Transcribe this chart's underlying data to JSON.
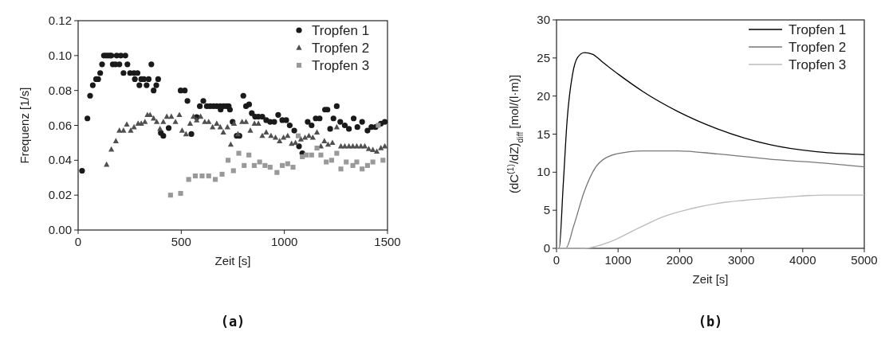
{
  "chart_data": [
    {
      "type": "scatter",
      "xlabel": "Zeit [s]",
      "ylabel": "Frequenz [1/s]",
      "xlim": [
        0,
        1500
      ],
      "xticks": [
        0,
        500,
        1000,
        1500
      ],
      "ylim": [
        0,
        0.12
      ],
      "yticks": [
        {
          "value": 0,
          "label": "0.00"
        },
        {
          "value": 0.02,
          "label": "0.02"
        },
        {
          "value": 0.04,
          "label": "0.04"
        },
        {
          "value": 0.06,
          "label": "0.06"
        },
        {
          "value": 0.08,
          "label": "0.08"
        },
        {
          "value": 0.1,
          "label": "0.10"
        },
        {
          "value": 0.12,
          "label": "0.12"
        }
      ],
      "legend": "top right",
      "annotations": [
        "(a)"
      ],
      "series": [
        {
          "name": "Tropfen 1",
          "color": "#1a1a1a",
          "marker": "circle",
          "x": [
            19,
            45,
            58,
            71,
            87,
            97,
            107,
            116,
            125,
            135,
            145,
            155,
            161,
            168,
            181,
            200,
            187,
            207,
            229,
            220,
            239,
            252,
            271,
            288,
            275,
            297,
            306,
            319,
            332,
            342,
            355,
            366,
            379,
            388,
            401,
            413,
            439,
            497,
            517,
            530,
            549,
            575,
            590,
            607,
            624,
            640,
            656,
            672,
            689,
            705,
            720,
            730,
            691,
            736,
            749,
            769,
            782,
            801,
            814,
            829,
            842,
            858,
            874,
            893,
            912,
            931,
            951,
            970,
            990,
            1009,
            1026,
            1048,
            1071,
            1087,
            1113,
            1132,
            1152,
            1171,
            1197,
            1209,
            1222,
            1238,
            1254,
            1271,
            1293,
            1313,
            1336,
            1354,
            1377,
            1403,
            1422,
            1442,
            1468,
            1487
          ],
          "values": [
            0.034,
            0.064,
            0.077,
            0.083,
            0.0865,
            0.0865,
            0.09,
            0.095,
            0.1,
            0.1,
            0.1,
            0.1,
            0.1,
            0.095,
            0.095,
            0.095,
            0.1,
            0.1,
            0.1,
            0.09,
            0.095,
            0.09,
            0.09,
            0.09,
            0.0865,
            0.083,
            0.0865,
            0.0865,
            0.083,
            0.0865,
            0.095,
            0.08,
            0.083,
            0.0865,
            0.0557,
            0.054,
            0.0585,
            0.08,
            0.08,
            0.074,
            0.055,
            0.0647,
            0.071,
            0.074,
            0.071,
            0.071,
            0.071,
            0.071,
            0.071,
            0.071,
            0.071,
            0.071,
            0.069,
            0.069,
            0.062,
            0.054,
            0.054,
            0.077,
            0.071,
            0.072,
            0.067,
            0.065,
            0.065,
            0.065,
            0.063,
            0.062,
            0.062,
            0.066,
            0.063,
            0.063,
            0.06,
            0.057,
            0.048,
            0.044,
            0.062,
            0.06,
            0.064,
            0.064,
            0.069,
            0.069,
            0.058,
            0.064,
            0.071,
            0.062,
            0.06,
            0.058,
            0.064,
            0.059,
            0.062,
            0.057,
            0.059,
            0.059,
            0.061,
            0.062
          ]
        },
        {
          "name": "Tropfen 2",
          "color": "#505050",
          "marker": "triangle",
          "x": [
            138,
            161,
            183,
            200,
            220,
            236,
            255,
            271,
            291,
            306,
            324,
            336,
            349,
            366,
            381,
            397,
            413,
            430,
            452,
            472,
            491,
            504,
            523,
            543,
            559,
            575,
            594,
            614,
            633,
            652,
            672,
            689,
            704,
            724,
            740,
            756,
            775,
            795,
            814,
            835,
            855,
            874,
            893,
            912,
            935,
            957,
            977,
            996,
            1016,
            1035,
            1054,
            1080,
            1100,
            1119,
            1138,
            1158,
            1177,
            1194,
            1212,
            1233,
            1254,
            1274,
            1293,
            1313,
            1332,
            1351,
            1371,
            1390,
            1409,
            1429,
            1448,
            1468,
            1487
          ],
          "values": [
            0.0375,
            0.0462,
            0.051,
            0.057,
            0.057,
            0.0605,
            0.057,
            0.059,
            0.061,
            0.061,
            0.062,
            0.066,
            0.066,
            0.064,
            0.062,
            0.058,
            0.062,
            0.065,
            0.065,
            0.062,
            0.066,
            0.057,
            0.055,
            0.061,
            0.065,
            0.063,
            0.065,
            0.062,
            0.062,
            0.059,
            0.061,
            0.059,
            0.056,
            0.059,
            0.049,
            0.061,
            0.055,
            0.062,
            0.062,
            0.057,
            0.061,
            0.061,
            0.054,
            0.056,
            0.054,
            0.053,
            0.051,
            0.053,
            0.054,
            0.0495,
            0.05,
            0.052,
            0.053,
            0.054,
            0.053,
            0.056,
            0.048,
            0.051,
            0.049,
            0.05,
            0.059,
            0.048,
            0.048,
            0.048,
            0.048,
            0.048,
            0.048,
            0.048,
            0.0465,
            0.046,
            0.045,
            0.047,
            0.048
          ]
        },
        {
          "name": "Tropfen 3",
          "color": "#999999",
          "marker": "square",
          "x": [
            448,
            497,
            536,
            568,
            601,
            633,
            665,
            698,
            727,
            753,
            779,
            805,
            828,
            854,
            880,
            906,
            931,
            964,
            990,
            1016,
            1042,
            1067,
            1087,
            1106,
            1132,
            1158,
            1177,
            1203,
            1229,
            1254,
            1274,
            1300,
            1332,
            1351,
            1377,
            1403,
            1429,
            1455,
            1478
          ],
          "values": [
            0.02,
            0.021,
            0.029,
            0.031,
            0.031,
            0.031,
            0.029,
            0.032,
            0.04,
            0.034,
            0.044,
            0.037,
            0.043,
            0.037,
            0.039,
            0.037,
            0.036,
            0.033,
            0.037,
            0.038,
            0.036,
            0.054,
            0.042,
            0.043,
            0.043,
            0.047,
            0.043,
            0.039,
            0.04,
            0.044,
            0.035,
            0.039,
            0.037,
            0.039,
            0.035,
            0.037,
            0.039,
            0.06,
            0.04
          ]
        }
      ]
    },
    {
      "type": "line",
      "xlabel": "Zeit [s]",
      "ylabel": "(dC$^{(1)}$/dZ)$_{diff}$ [mol/(l·m)]",
      "xlim": [
        0,
        5000
      ],
      "xticks": [
        0,
        1000,
        2000,
        3000,
        4000,
        5000
      ],
      "ylim": [
        0,
        30
      ],
      "yticks": [
        0,
        5,
        10,
        15,
        20,
        25,
        30
      ],
      "legend": "top right",
      "annotations": [
        "(b)"
      ],
      "series": [
        {
          "name": "Tropfen 1",
          "color": "#000000",
          "x": [
            0,
            43,
            108,
            173,
            259,
            345,
            453,
            583,
            756,
            1015,
            1403,
            1965,
            2612,
            3476,
            4339,
            5000
          ],
          "values": [
            0,
            0,
            8.2,
            16.9,
            22.8,
            25.1,
            25.7,
            25.5,
            24.4,
            22.8,
            20.6,
            18,
            15.7,
            13.6,
            12.6,
            12.3
          ]
        },
        {
          "name": "Tropfen 2",
          "color": "#777777",
          "x": [
            0,
            150,
            281,
            453,
            669,
            971,
            1403,
            1965,
            2612,
            3476,
            4339,
            5000
          ],
          "values": [
            0,
            0,
            3,
            7.5,
            11,
            12.4,
            12.8,
            12.8,
            12.4,
            11.7,
            11.2,
            10.7
          ]
        },
        {
          "name": "Tropfen 3",
          "color": "#bbbbbb",
          "x": [
            0,
            450,
            885,
            1317,
            1749,
            2181,
            2612,
            3044,
            3692,
            4339,
            5000
          ],
          "values": [
            0,
            0,
            0.9,
            2.6,
            4.2,
            5.2,
            5.9,
            6.3,
            6.7,
            7,
            7
          ]
        }
      ]
    }
  ]
}
